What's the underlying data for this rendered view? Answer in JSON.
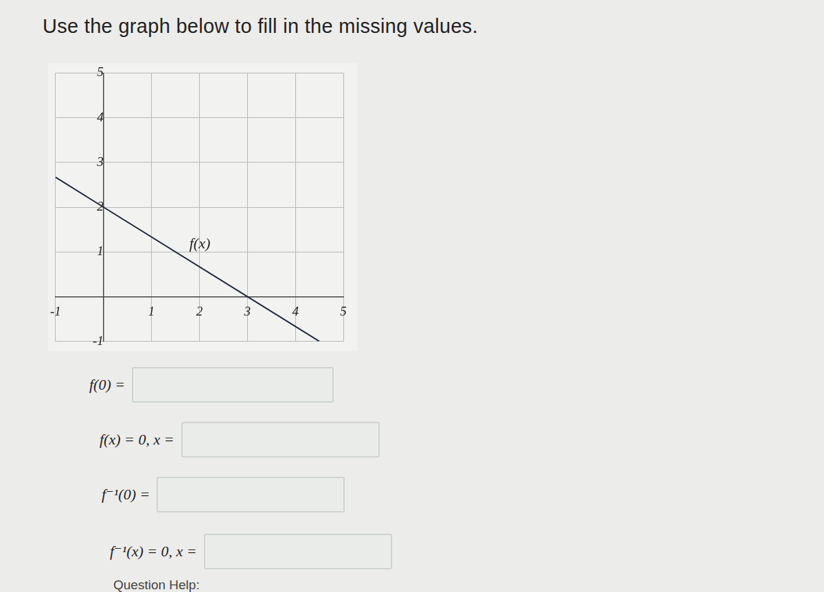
{
  "chart_data": {
    "type": "line",
    "title": "Use the graph below to fill in the missing values.",
    "series": [
      {
        "name": "f(x)",
        "color": "#1e2740",
        "x": [
          -1,
          0,
          3,
          4.5
        ],
        "values": [
          2.67,
          2,
          0,
          -1
        ]
      }
    ],
    "annotations": [
      "f(x)"
    ],
    "xlim": [
      -1,
      5
    ],
    "xticks": [
      -1,
      1,
      2,
      3,
      4,
      5
    ],
    "ylim": [
      -1,
      5
    ],
    "yticks": [
      -1,
      1,
      2,
      3,
      4,
      5
    ],
    "grid": true
  },
  "questions": [
    "f(0) =",
    "f(x) = 0,  x =",
    "f⁻¹(0) =",
    "f⁻¹(x) = 0,  x ="
  ],
  "footer": "Question Help:"
}
